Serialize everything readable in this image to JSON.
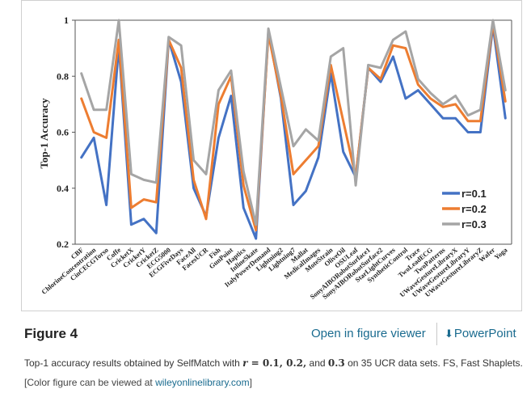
{
  "chart_data": {
    "type": "line",
    "ylabel": "Top-1 Accuracy",
    "ylim": [
      0.2,
      1
    ],
    "yticks": [
      "0.2",
      "0.4",
      "0.6",
      "0.8",
      "1"
    ],
    "categories": [
      "CBF",
      "ChlorineConcentration",
      "CinCECGTorso",
      "Coffe",
      "CricketX",
      "CricketY",
      "CricketZ",
      "ECG5000",
      "ECGFiveDays",
      "FaceAll",
      "FacesUCR",
      "Fish",
      "GunPoint",
      "Haptics",
      "InlineSkate",
      "ItalyPowerDemand",
      "Lightning2",
      "Lightning7",
      "Mallat",
      "MedicalImages",
      "MoteStrain",
      "OliveOil",
      "OSULeaf",
      "SonyAIBORobotSurface1",
      "SonyAIBORobotSurface2",
      "StarLightCurves",
      "SyntheticControl",
      "Trace",
      "TwoLeadECG",
      "TwoPatterns",
      "UWaveGestureLibraryX",
      "UWaveGestureLibraryY",
      "UWaveGestureLibraryZ",
      "Wafer",
      "Yoga"
    ],
    "series": [
      {
        "name": "r=0.1",
        "color": "#4472c4",
        "values": [
          0.51,
          0.58,
          0.34,
          0.91,
          0.27,
          0.29,
          0.24,
          0.93,
          0.78,
          0.4,
          0.3,
          0.58,
          0.73,
          0.33,
          0.22,
          0.96,
          0.72,
          0.34,
          0.39,
          0.51,
          0.81,
          0.53,
          0.44,
          0.83,
          0.78,
          0.87,
          0.72,
          0.75,
          0.7,
          0.65,
          0.65,
          0.6,
          0.6,
          0.98,
          0.65
        ]
      },
      {
        "name": "r=0.2",
        "color": "#ed7d31",
        "values": [
          0.72,
          0.6,
          0.58,
          0.93,
          0.33,
          0.36,
          0.35,
          0.93,
          0.83,
          0.43,
          0.29,
          0.7,
          0.8,
          0.41,
          0.25,
          0.95,
          0.73,
          0.45,
          0.5,
          0.55,
          0.84,
          0.64,
          0.44,
          0.83,
          0.79,
          0.91,
          0.9,
          0.77,
          0.72,
          0.69,
          0.7,
          0.64,
          0.64,
          0.99,
          0.71
        ]
      },
      {
        "name": "r=0.3",
        "color": "#a5a5a5",
        "values": [
          0.81,
          0.68,
          0.68,
          1.0,
          0.45,
          0.43,
          0.42,
          0.94,
          0.91,
          0.5,
          0.45,
          0.75,
          0.82,
          0.46,
          0.27,
          0.97,
          0.76,
          0.55,
          0.61,
          0.57,
          0.87,
          0.9,
          0.41,
          0.84,
          0.83,
          0.93,
          0.96,
          0.79,
          0.74,
          0.7,
          0.73,
          0.66,
          0.68,
          1.0,
          0.75
        ]
      }
    ],
    "legend_position": "bottom-right"
  },
  "footer": {
    "figure_label": "Figure 4",
    "open_viewer": "Open in figure viewer",
    "powerpoint": "PowerPoint"
  },
  "caption": {
    "prefix": "Top-1 accuracy results obtained by SelfMatch with ",
    "r_symbol": "r",
    "equals": " = ",
    "values": "0.1, 0.2,",
    "and": " and ",
    "last_value": "0.3",
    "suffix": " on 35 UCR data sets. FS, Fast Shaplets."
  },
  "credit": {
    "prefix": "[Color figure can be viewed at ",
    "link": "wileyonlinelibrary.com",
    "suffix": "]"
  }
}
